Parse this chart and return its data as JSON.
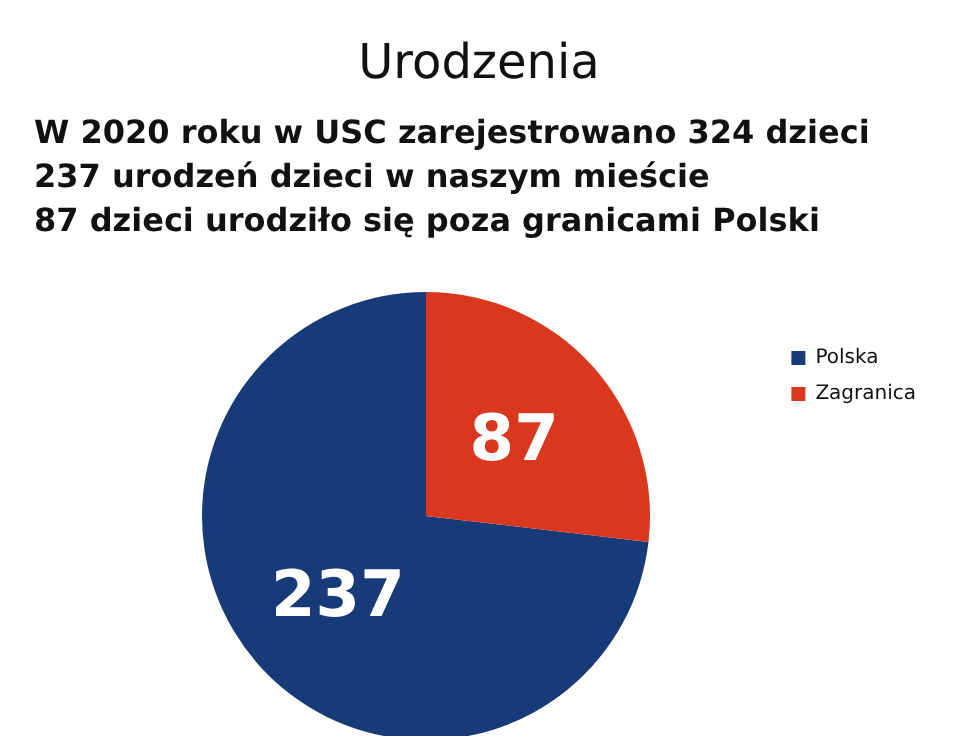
{
  "chart_data": {
    "type": "pie",
    "title": "Urodzenia",
    "subtitle": "W 2020 roku w USC zarejestrowano 324 dzieci\n237 urodzeń dzieci w naszym mieście\n87 dzieci urodziło się poza granicami Polski",
    "categories": [
      "Polska",
      "Zagranica"
    ],
    "values": [
      237,
      87
    ],
    "colors": [
      "#173a78",
      "#d9381e"
    ],
    "data_labels": true,
    "legend": "right"
  }
}
